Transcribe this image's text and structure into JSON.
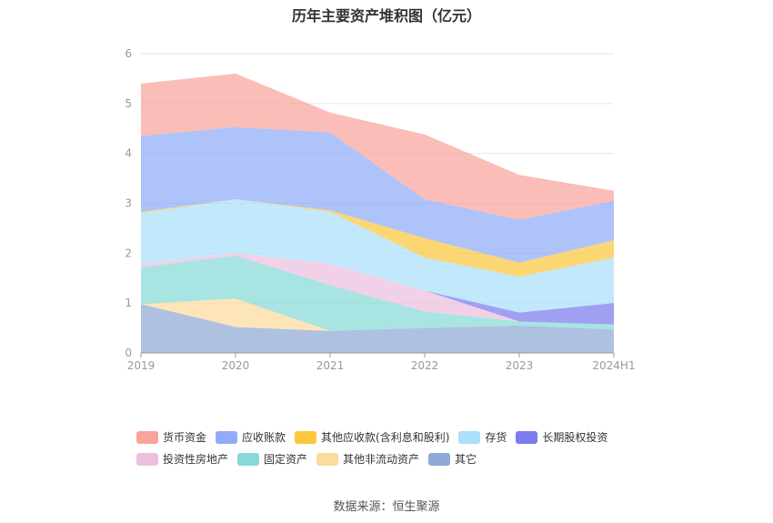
{
  "title": "历年主要资产堆积图（亿元）",
  "source": "数据来源：恒生聚源",
  "chart_data": {
    "type": "area",
    "stacked": true,
    "categories": [
      "2019",
      "2020",
      "2021",
      "2022",
      "2023",
      "2024H1"
    ],
    "ylim": [
      0,
      6
    ],
    "yticks": [
      "0",
      "1",
      "2",
      "3",
      "4",
      "5",
      "6"
    ],
    "grid": true,
    "legend_position": "bottom",
    "series": [
      {
        "name": "其它",
        "color": "#8fa9d6",
        "values": [
          0.98,
          0.52,
          0.44,
          0.5,
          0.55,
          0.47
        ]
      },
      {
        "name": "其他非流动资产",
        "color": "#fddb9c",
        "values": [
          0.0,
          0.57,
          0.0,
          0.0,
          0.0,
          0.0
        ]
      },
      {
        "name": "固定资产",
        "color": "#86d9d6",
        "values": [
          0.74,
          0.86,
          0.92,
          0.33,
          0.08,
          0.1
        ]
      },
      {
        "name": "投资性房地产",
        "color": "#ecbfdf",
        "values": [
          0.06,
          0.05,
          0.43,
          0.42,
          0.0,
          0.0
        ]
      },
      {
        "name": "长期股权投资",
        "color": "#7b7cee",
        "values": [
          0.0,
          0.0,
          0.0,
          0.0,
          0.18,
          0.43
        ]
      },
      {
        "name": "存货",
        "color": "#abdffa",
        "values": [
          1.02,
          1.08,
          1.04,
          0.66,
          0.72,
          0.91
        ]
      },
      {
        "name": "其他应收款(含利息和股利)",
        "color": "#fcc63e",
        "values": [
          0.03,
          0.0,
          0.03,
          0.39,
          0.28,
          0.35
        ]
      },
      {
        "name": "应收账款",
        "color": "#8eacf7",
        "values": [
          1.52,
          1.45,
          1.56,
          0.78,
          0.86,
          0.79
        ]
      },
      {
        "name": "货币资金",
        "color": "#f9a49b",
        "values": [
          1.05,
          1.07,
          0.4,
          1.3,
          0.9,
          0.2
        ]
      }
    ]
  },
  "legend_rows": [
    [
      "货币资金",
      "应收账款",
      "其他应收款(含利息和股利)",
      "存货",
      "长期股权投资"
    ],
    [
      "投资性房地产",
      "固定资产",
      "其他非流动资产",
      "其它"
    ]
  ]
}
